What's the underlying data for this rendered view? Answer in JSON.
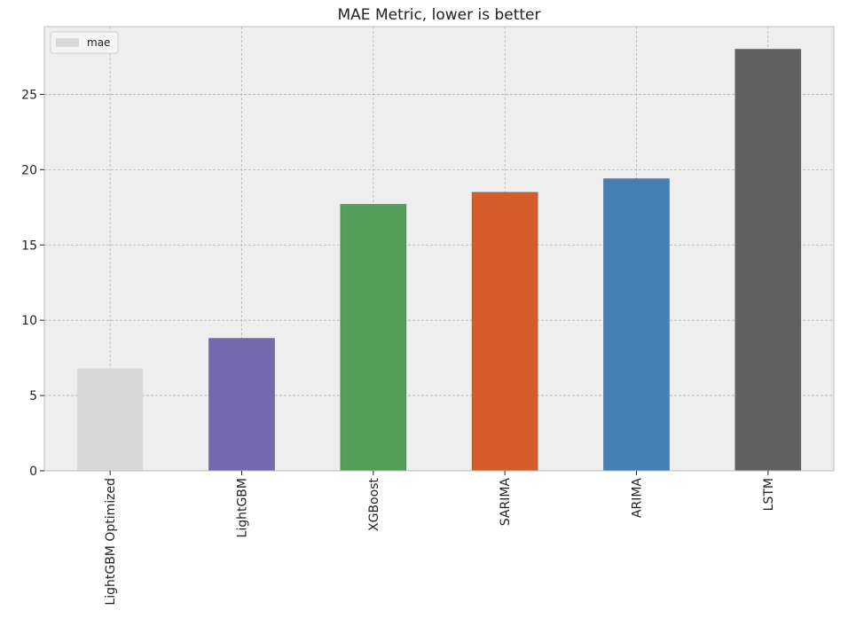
{
  "chart_data": {
    "type": "bar",
    "title": "MAE Metric, lower is better",
    "xlabel": "",
    "ylabel": "",
    "categories": [
      "LightGBM Optimized",
      "LightGBM",
      "XGBoost",
      "SARIMA",
      "ARIMA",
      "LSTM"
    ],
    "series": [
      {
        "name": "mae",
        "values": [
          6.8,
          8.8,
          17.7,
          18.5,
          19.4,
          28.0
        ]
      }
    ],
    "bar_colors": [
      "#d8d8d8",
      "#7468ae",
      "#539f5a",
      "#d45d2a",
      "#467fb6",
      "#606060"
    ],
    "ylim": [
      0,
      29.5
    ],
    "yticks": [
      0,
      5,
      10,
      15,
      20,
      25
    ],
    "grid": true,
    "legend_position": "top-left",
    "colors": {
      "plot_background": "#eeeeee",
      "grid": "#b0b0b0",
      "frame": "#bcbcbc",
      "text": "#222222"
    }
  }
}
